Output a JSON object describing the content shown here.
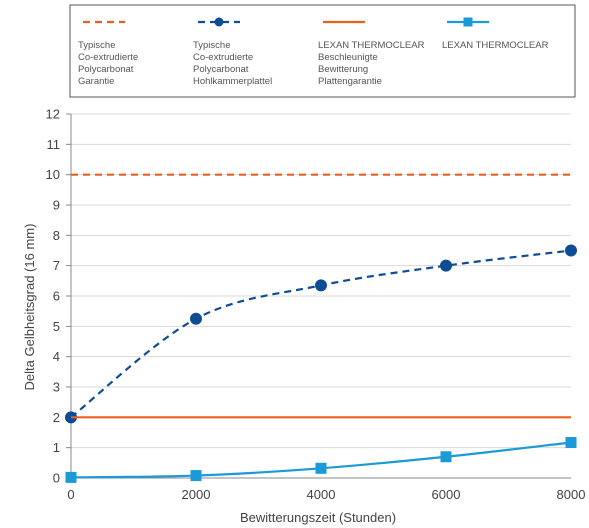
{
  "chart_data": {
    "type": "line",
    "xlabel": "Bewitterungszeit (Stunden)",
    "ylabel": "Delta Gelbheitsgrad (16 mm)",
    "xlim": [
      0,
      8000
    ],
    "ylim": [
      0,
      12
    ],
    "xticks": [
      0,
      2000,
      4000,
      6000,
      8000
    ],
    "yticks": [
      0,
      1,
      2,
      3,
      4,
      5,
      6,
      7,
      8,
      9,
      10,
      11,
      12
    ],
    "grid": "horizontal",
    "legend_position": "top",
    "series": [
      {
        "name_lines": [
          "Typische",
          "Co-extrudierte",
          "Polycarbonat",
          "Garantie"
        ],
        "color": "#e8601c",
        "style": "dashed",
        "marker": "none",
        "x": [
          0,
          8000
        ],
        "y": [
          10,
          10
        ]
      },
      {
        "name_lines": [
          "Typische",
          "Co-extrudierte",
          "Polycarbonat",
          "Hohlkammerplattel"
        ],
        "color": "#0e4c96",
        "style": "dashed",
        "marker": "circle",
        "x": [
          0,
          2000,
          4000,
          6000,
          8000
        ],
        "y": [
          2.0,
          5.25,
          6.35,
          7.0,
          7.5
        ]
      },
      {
        "name_lines": [
          "LEXAN THERMOCLEAR",
          "Beschleunigte",
          "Bewitterung",
          "Plattengarantie"
        ],
        "color": "#e8601c",
        "style": "solid",
        "marker": "none",
        "x": [
          0,
          8000
        ],
        "y": [
          2,
          2
        ]
      },
      {
        "name_lines": [
          "LEXAN THERMOCLEAR"
        ],
        "color": "#1a9ad6",
        "style": "solid",
        "marker": "square",
        "x": [
          0,
          2000,
          4000,
          6000,
          8000
        ],
        "y": [
          0.02,
          0.08,
          0.32,
          0.7,
          1.17
        ]
      }
    ]
  }
}
